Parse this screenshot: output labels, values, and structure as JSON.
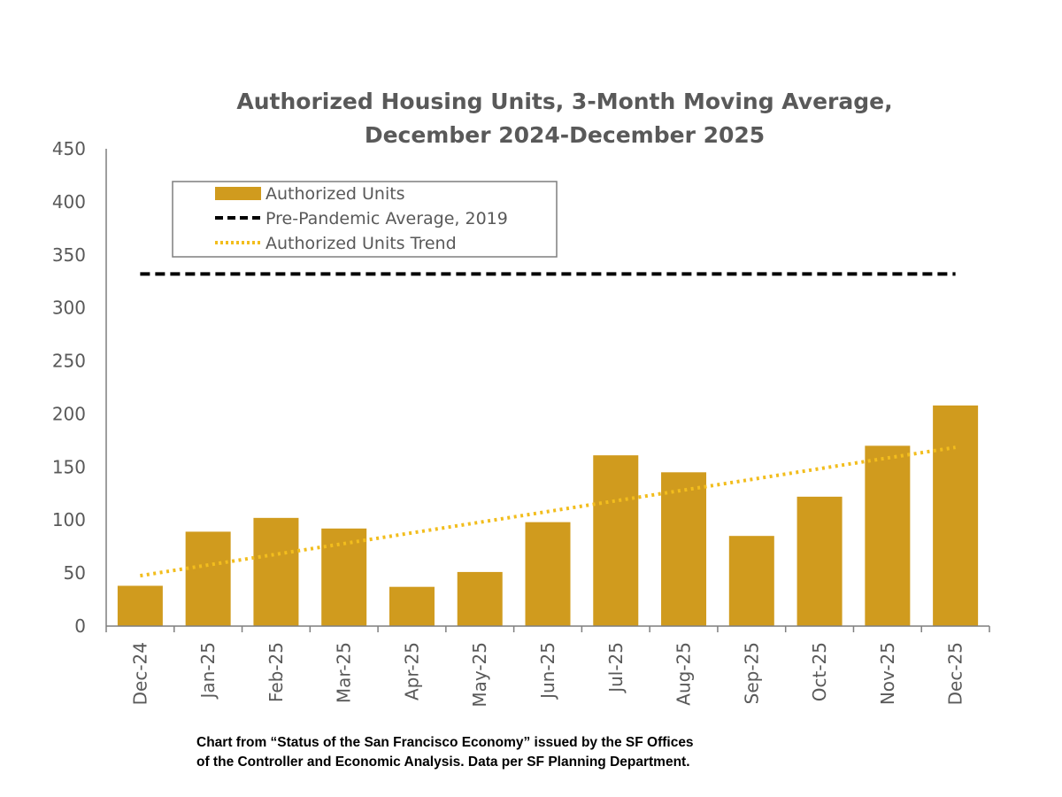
{
  "chart_data": {
    "type": "bar",
    "title": "Authorized Housing Units, 3-Month Moving Average,",
    "subtitle": "December 2024-December 2025",
    "xlabel": "",
    "ylabel": "",
    "ylim": [
      0,
      450
    ],
    "yticks": [
      0,
      50,
      100,
      150,
      200,
      250,
      300,
      350,
      400,
      450
    ],
    "grid": false,
    "legend_position": "top-left",
    "categories": [
      "Dec-24",
      "Jan-25",
      "Feb-25",
      "Mar-25",
      "Apr-25",
      "May-25",
      "Jun-25",
      "Jul-25",
      "Aug-25",
      "Sep-25",
      "Oct-25",
      "Nov-25",
      "Dec-25"
    ],
    "series": [
      {
        "name": "Authorized Units",
        "type": "bar",
        "color": "#D09B1E",
        "values": [
          38,
          89,
          102,
          92,
          37,
          51,
          98,
          161,
          145,
          85,
          122,
          170,
          208
        ]
      },
      {
        "name": "Pre-Pandemic Average, 2019",
        "type": "line",
        "style": "dashed",
        "color": "#000000",
        "values": [
          332,
          332,
          332,
          332,
          332,
          332,
          332,
          332,
          332,
          332,
          332,
          332,
          332
        ]
      },
      {
        "name": "Authorized Units Trend",
        "type": "line",
        "style": "dotted",
        "color": "#F2BD1D",
        "values": [
          47.5,
          57.6,
          67.7,
          77.8,
          87.9,
          97.9,
          108,
          118.1,
          128.2,
          138.3,
          148.4,
          158.5,
          168.5
        ]
      }
    ]
  },
  "footnote": {
    "line1": "Chart from “Status of the San Francisco Economy” issued by the SF Offices",
    "line2": "of the Controller and Economic Analysis. Data per SF Planning Department."
  }
}
